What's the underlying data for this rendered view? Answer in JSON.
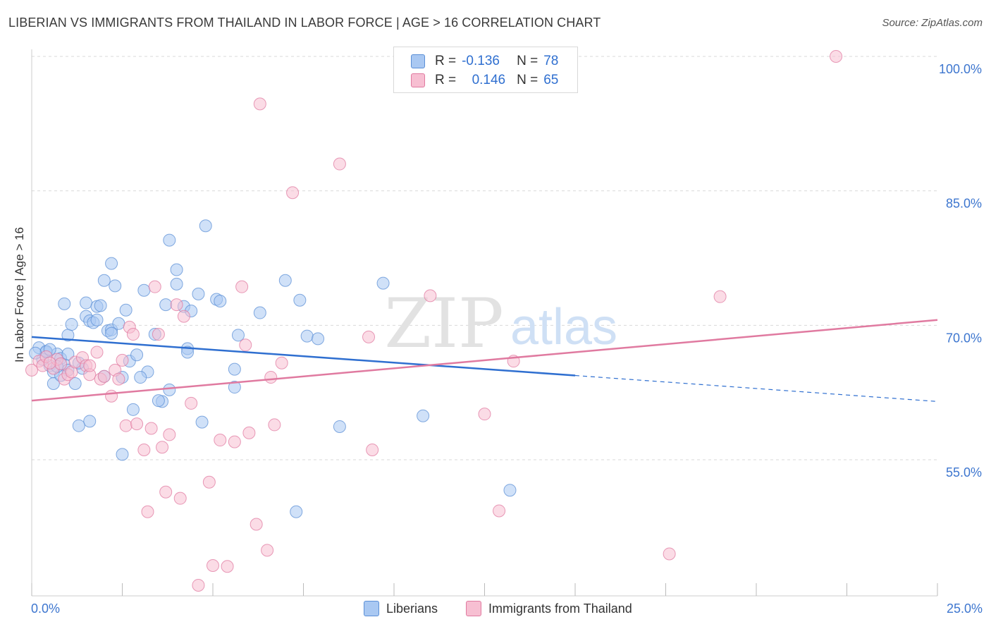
{
  "title": "LIBERIAN VS IMMIGRANTS FROM THAILAND IN LABOR FORCE | AGE > 16 CORRELATION CHART",
  "source": "Source: ZipAtlas.com",
  "watermark": {
    "zip": "ZIP",
    "atlas": "atlas"
  },
  "legend_top": {
    "rows": [
      {
        "r_label": "R =",
        "r_value": "-0.136",
        "n_label": "N =",
        "n_value": "78",
        "color": "#a9c8f2",
        "border": "#5b8fd6"
      },
      {
        "r_label": "R =",
        "r_value": "0.146",
        "n_label": "N =",
        "n_value": "65",
        "color": "#f7bfd2",
        "border": "#e07aa0"
      }
    ]
  },
  "legend_bottom": [
    {
      "label": "Liberians",
      "color": "#a9c8f2",
      "border": "#5b8fd6"
    },
    {
      "label": "Immigrants from Thailand",
      "color": "#f7bfd2",
      "border": "#e07aa0"
    }
  ],
  "chart_data": {
    "type": "scatter",
    "title": "LIBERIAN VS IMMIGRANTS FROM THAILAND IN LABOR FORCE | AGE > 16 CORRELATION CHART",
    "xlabel": "",
    "ylabel": "In Labor Force | Age > 16",
    "xlim": [
      0,
      25
    ],
    "ylim": [
      41,
      102
    ],
    "x_ticks_labels": [
      "0.0%",
      "25.0%"
    ],
    "y_ticks": [
      55,
      70,
      85,
      100
    ],
    "y_tick_labels": [
      "55.0%",
      "70.0%",
      "85.0%",
      "100.0%"
    ],
    "grid": true,
    "series": [
      {
        "name": "Liberians",
        "color": "#5b8fd6",
        "fill": "#a9c8f2",
        "trend": {
          "x0": 0,
          "y0": 68.7,
          "x1": 15,
          "y1": 64.4,
          "dash_to_x": 25,
          "dash_to_y": 61.5,
          "color": "#2f6fd0"
        },
        "points": [
          [
            0.2,
            67.5
          ],
          [
            0.4,
            67.0
          ],
          [
            0.5,
            65.5
          ],
          [
            0.6,
            64.8
          ],
          [
            0.7,
            66.8
          ],
          [
            0.8,
            66.3
          ],
          [
            0.9,
            65.6
          ],
          [
            1.0,
            65.0
          ],
          [
            0.3,
            66.2
          ],
          [
            0.6,
            63.5
          ],
          [
            1.2,
            63.5
          ],
          [
            1.4,
            65.2
          ],
          [
            1.0,
            68.9
          ],
          [
            1.1,
            70.1
          ],
          [
            0.9,
            72.4
          ],
          [
            1.5,
            72.5
          ],
          [
            1.5,
            71.0
          ],
          [
            1.6,
            70.5
          ],
          [
            1.7,
            70.3
          ],
          [
            1.8,
            72.1
          ],
          [
            1.9,
            72.2
          ],
          [
            2.0,
            75.0
          ],
          [
            2.2,
            76.9
          ],
          [
            2.3,
            74.4
          ],
          [
            2.1,
            69.4
          ],
          [
            2.2,
            69.5
          ],
          [
            2.4,
            70.2
          ],
          [
            2.6,
            71.7
          ],
          [
            2.7,
            66.0
          ],
          [
            2.9,
            66.7
          ],
          [
            3.1,
            73.9
          ],
          [
            3.2,
            64.8
          ],
          [
            3.0,
            64.2
          ],
          [
            2.5,
            64.2
          ],
          [
            2.0,
            64.3
          ],
          [
            1.6,
            59.3
          ],
          [
            1.3,
            58.8
          ],
          [
            2.8,
            60.6
          ],
          [
            3.4,
            69.0
          ],
          [
            3.6,
            61.5
          ],
          [
            3.7,
            72.3
          ],
          [
            3.8,
            62.8
          ],
          [
            3.8,
            79.5
          ],
          [
            4.0,
            76.2
          ],
          [
            4.0,
            74.6
          ],
          [
            4.2,
            72.1
          ],
          [
            4.3,
            67.4
          ],
          [
            4.3,
            67.0
          ],
          [
            4.4,
            71.6
          ],
          [
            4.6,
            73.5
          ],
          [
            4.7,
            59.2
          ],
          [
            4.8,
            81.1
          ],
          [
            5.1,
            72.9
          ],
          [
            5.2,
            72.7
          ],
          [
            5.6,
            65.1
          ],
          [
            5.6,
            63.1
          ],
          [
            5.7,
            68.9
          ],
          [
            6.3,
            71.4
          ],
          [
            7.0,
            75.0
          ],
          [
            7.4,
            72.8
          ],
          [
            7.6,
            68.8
          ],
          [
            7.9,
            68.5
          ],
          [
            8.5,
            58.7
          ],
          [
            9.7,
            74.7
          ],
          [
            10.8,
            59.9
          ],
          [
            7.3,
            49.2
          ],
          [
            13.2,
            51.6
          ],
          [
            3.5,
            61.6
          ],
          [
            0.4,
            67.1
          ],
          [
            0.1,
            66.9
          ],
          [
            2.5,
            55.6
          ],
          [
            1.0,
            66.8
          ],
          [
            1.3,
            65.8
          ],
          [
            1.8,
            70.6
          ],
          [
            2.2,
            69.1
          ],
          [
            0.8,
            64.4
          ],
          [
            0.5,
            67.3
          ],
          [
            0.7,
            65.4
          ]
        ]
      },
      {
        "name": "Immigrants from Thailand",
        "color": "#e07aa0",
        "fill": "#f7bfd2",
        "trend": {
          "x0": 0,
          "y0": 61.6,
          "x1": 25,
          "y1": 70.6,
          "color": "#e07aa0"
        },
        "points": [
          [
            0.0,
            65.0
          ],
          [
            0.2,
            66.0
          ],
          [
            0.3,
            65.5
          ],
          [
            0.4,
            66.5
          ],
          [
            0.6,
            65.2
          ],
          [
            0.7,
            66.2
          ],
          [
            0.8,
            65.7
          ],
          [
            0.9,
            64.0
          ],
          [
            1.0,
            64.5
          ],
          [
            1.1,
            64.8
          ],
          [
            1.2,
            65.9
          ],
          [
            1.4,
            66.4
          ],
          [
            1.5,
            65.5
          ],
          [
            1.6,
            64.5
          ],
          [
            1.8,
            67.0
          ],
          [
            1.9,
            64.0
          ],
          [
            2.0,
            64.3
          ],
          [
            2.2,
            62.1
          ],
          [
            2.3,
            65.0
          ],
          [
            2.5,
            66.1
          ],
          [
            2.6,
            58.8
          ],
          [
            2.7,
            69.8
          ],
          [
            2.8,
            69.0
          ],
          [
            2.9,
            59.0
          ],
          [
            3.1,
            56.1
          ],
          [
            3.2,
            49.2
          ],
          [
            3.3,
            58.5
          ],
          [
            3.4,
            74.3
          ],
          [
            3.5,
            69.0
          ],
          [
            3.6,
            56.4
          ],
          [
            3.7,
            51.4
          ],
          [
            3.8,
            57.8
          ],
          [
            4.0,
            72.3
          ],
          [
            4.1,
            50.7
          ],
          [
            4.2,
            71.0
          ],
          [
            4.4,
            61.3
          ],
          [
            4.6,
            41.0
          ],
          [
            4.9,
            52.5
          ],
          [
            5.0,
            43.2
          ],
          [
            5.2,
            57.2
          ],
          [
            5.4,
            43.1
          ],
          [
            5.6,
            57.0
          ],
          [
            5.8,
            74.3
          ],
          [
            5.9,
            67.8
          ],
          [
            6.0,
            58.0
          ],
          [
            6.2,
            47.8
          ],
          [
            6.3,
            94.7
          ],
          [
            6.5,
            44.9
          ],
          [
            6.6,
            64.2
          ],
          [
            6.7,
            58.9
          ],
          [
            6.9,
            65.8
          ],
          [
            7.2,
            84.8
          ],
          [
            8.5,
            88.0
          ],
          [
            9.3,
            68.7
          ],
          [
            9.4,
            56.1
          ],
          [
            11.0,
            73.3
          ],
          [
            12.5,
            60.1
          ],
          [
            12.9,
            49.3
          ],
          [
            13.3,
            66.0
          ],
          [
            17.6,
            44.5
          ],
          [
            19.0,
            73.2
          ],
          [
            22.2,
            100.0
          ],
          [
            1.6,
            65.5
          ],
          [
            2.4,
            64.0
          ],
          [
            0.5,
            65.8
          ]
        ]
      }
    ]
  }
}
